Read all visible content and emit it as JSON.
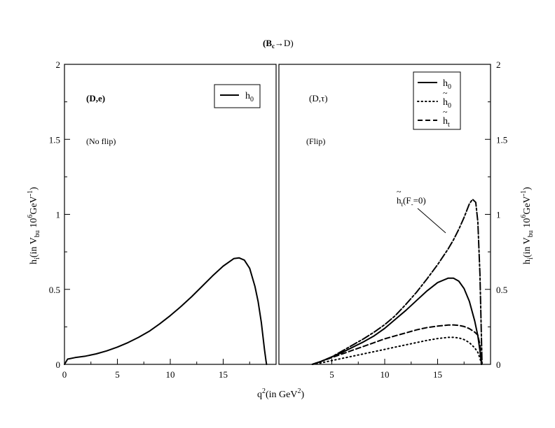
{
  "chart_data": [
    {
      "type": "line",
      "panel_label": "(D,e)",
      "note": "(No flip)",
      "xlim": [
        0,
        20
      ],
      "ylim": [
        0,
        2
      ],
      "xticks": [
        "0",
        "5",
        "10",
        "15"
      ],
      "yticks": [
        "0",
        "0.5",
        "1",
        "1.5",
        "2"
      ],
      "series": [
        {
          "name": "h0",
          "style": "solid",
          "x": [
            0.0,
            0.3,
            1,
            2,
            3,
            4,
            5,
            6,
            7,
            8,
            9,
            10,
            11,
            12,
            13,
            14,
            15,
            16,
            16.5,
            17,
            17.5,
            18,
            18.3,
            18.6,
            18.9,
            19.05,
            19.1
          ],
          "y": [
            0.0,
            0.035,
            0.045,
            0.055,
            0.07,
            0.09,
            0.115,
            0.145,
            0.18,
            0.22,
            0.27,
            0.325,
            0.385,
            0.45,
            0.52,
            0.59,
            0.655,
            0.705,
            0.71,
            0.695,
            0.64,
            0.52,
            0.42,
            0.28,
            0.1,
            0.02,
            0.0
          ]
        }
      ]
    },
    {
      "type": "line",
      "panel_label": "(D,τ)",
      "note": "(Flip)",
      "xlim": [
        0,
        20
      ],
      "ylim": [
        0,
        2
      ],
      "xticks": [
        "5",
        "10",
        "15"
      ],
      "yticks": [
        "0",
        "0.5",
        "1",
        "1.5",
        "2"
      ],
      "annotation": "h̃t(F-=0)",
      "series": [
        {
          "name": "h0",
          "style": "solid",
          "x": [
            3.16,
            4,
            5,
            6,
            7,
            8,
            9,
            10,
            11,
            12,
            13,
            14,
            15,
            16,
            16.5,
            17,
            17.5,
            18,
            18.5,
            18.8,
            19.0,
            19.15
          ],
          "y": [
            0.0,
            0.02,
            0.05,
            0.08,
            0.115,
            0.15,
            0.19,
            0.24,
            0.3,
            0.36,
            0.425,
            0.49,
            0.545,
            0.575,
            0.575,
            0.555,
            0.505,
            0.42,
            0.29,
            0.19,
            0.09,
            0.0
          ]
        },
        {
          "name": "h̃0",
          "style": "dotted",
          "x": [
            3.16,
            4,
            5,
            6,
            7,
            8,
            9,
            10,
            11,
            12,
            13,
            14,
            15,
            16,
            16.5,
            17,
            17.5,
            18,
            18.5,
            18.8,
            19.0,
            19.15
          ],
          "y": [
            0.0,
            0.01,
            0.025,
            0.04,
            0.055,
            0.07,
            0.085,
            0.1,
            0.115,
            0.13,
            0.145,
            0.16,
            0.172,
            0.18,
            0.18,
            0.176,
            0.165,
            0.145,
            0.11,
            0.08,
            0.04,
            0.0
          ]
        },
        {
          "name": "h̃t",
          "style": "dashed",
          "x": [
            3.16,
            4,
            5,
            6,
            7,
            8,
            9,
            10,
            11,
            12,
            13,
            14,
            15,
            16,
            16.5,
            17,
            17.5,
            18,
            18.5,
            18.8,
            19.0,
            19.15
          ],
          "y": [
            0.0,
            0.02,
            0.045,
            0.07,
            0.095,
            0.12,
            0.145,
            0.17,
            0.19,
            0.21,
            0.23,
            0.245,
            0.255,
            0.262,
            0.263,
            0.26,
            0.252,
            0.238,
            0.215,
            0.195,
            0.13,
            0.0
          ]
        },
        {
          "name": "h̃t(F-=0)",
          "style": "dashdash",
          "x": [
            3.16,
            4,
            5,
            6,
            7,
            8,
            9,
            10,
            11,
            12,
            13,
            14,
            15,
            16,
            16.5,
            17,
            17.5,
            18,
            18.3,
            18.6,
            18.8,
            19.0,
            19.1,
            19.2
          ],
          "y": [
            0.0,
            0.02,
            0.05,
            0.09,
            0.13,
            0.17,
            0.215,
            0.265,
            0.325,
            0.4,
            0.48,
            0.57,
            0.665,
            0.77,
            0.83,
            0.9,
            0.98,
            1.07,
            1.1,
            1.08,
            0.95,
            0.6,
            0.3,
            0.0
          ]
        }
      ]
    }
  ],
  "figure": {
    "title_main": "(B",
    "title_sub": "c",
    "title_rest": "→D)",
    "xlabel_main": "q",
    "xlabel_sup": "2",
    "xlabel_rest": "(in GeV",
    "xlabel_sup2": "2",
    "xlabel_close": ")",
    "ylabel_h": "h",
    "ylabel_i": "i",
    "ylabel_in": "(in V",
    "ylabel_bu": "bu",
    "ylabel_ten": "10",
    "ylabel_six": "6",
    "ylabel_gev": "GeV",
    "ylabel_m1": "-1",
    "ylabel_close": ")"
  },
  "legend_left": {
    "h0_base": "h",
    "h0_sub": "0"
  },
  "legend_right": {
    "h0_base": "h",
    "h0_sub": "0",
    "ht0_base": "h",
    "ht0_sub": "0",
    "tilde": "~",
    "htt_base": "h",
    "htt_sub": "t"
  },
  "annotation": {
    "tilde": "~",
    "base": "h",
    "sub": "t",
    "rest": "(F",
    "sub2": "-",
    "end": "=0)"
  }
}
